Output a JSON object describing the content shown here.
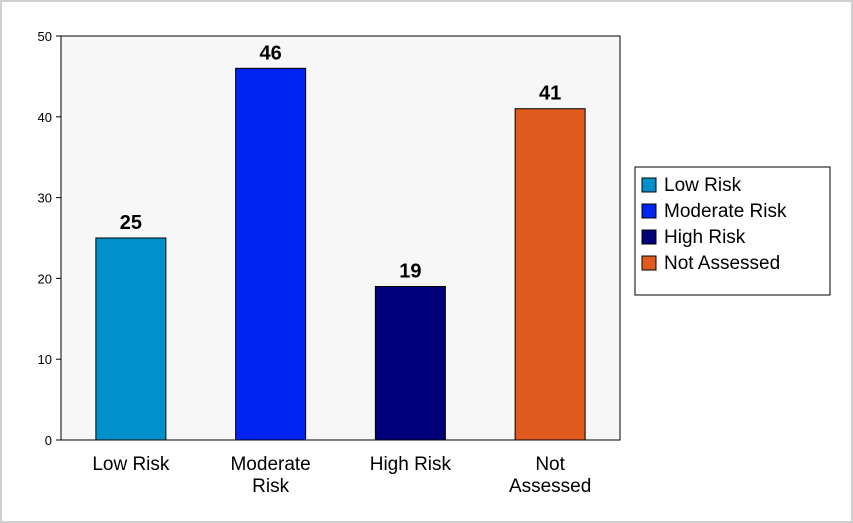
{
  "chart_data": {
    "type": "bar",
    "title": "",
    "xlabel": "",
    "ylabel": "",
    "categories": [
      "Low Risk",
      "Moderate Risk",
      "High Risk",
      "Not Assessed"
    ],
    "category_label_lines": [
      [
        "Low Risk"
      ],
      [
        "Moderate",
        "Risk"
      ],
      [
        "High Risk"
      ],
      [
        "Not",
        "Assessed"
      ]
    ],
    "values": [
      25,
      46,
      19,
      41
    ],
    "colors": [
      "#0090cc",
      "#0024f2",
      "#00007a",
      "#e05a1e"
    ],
    "ylim": [
      0,
      50
    ],
    "yticks": [
      0,
      10,
      20,
      30,
      40,
      50
    ],
    "grid": false,
    "legend": {
      "placement": "right",
      "entries": [
        "Low Risk",
        "Moderate Risk",
        "High Risk",
        "Not Assessed"
      ]
    }
  }
}
